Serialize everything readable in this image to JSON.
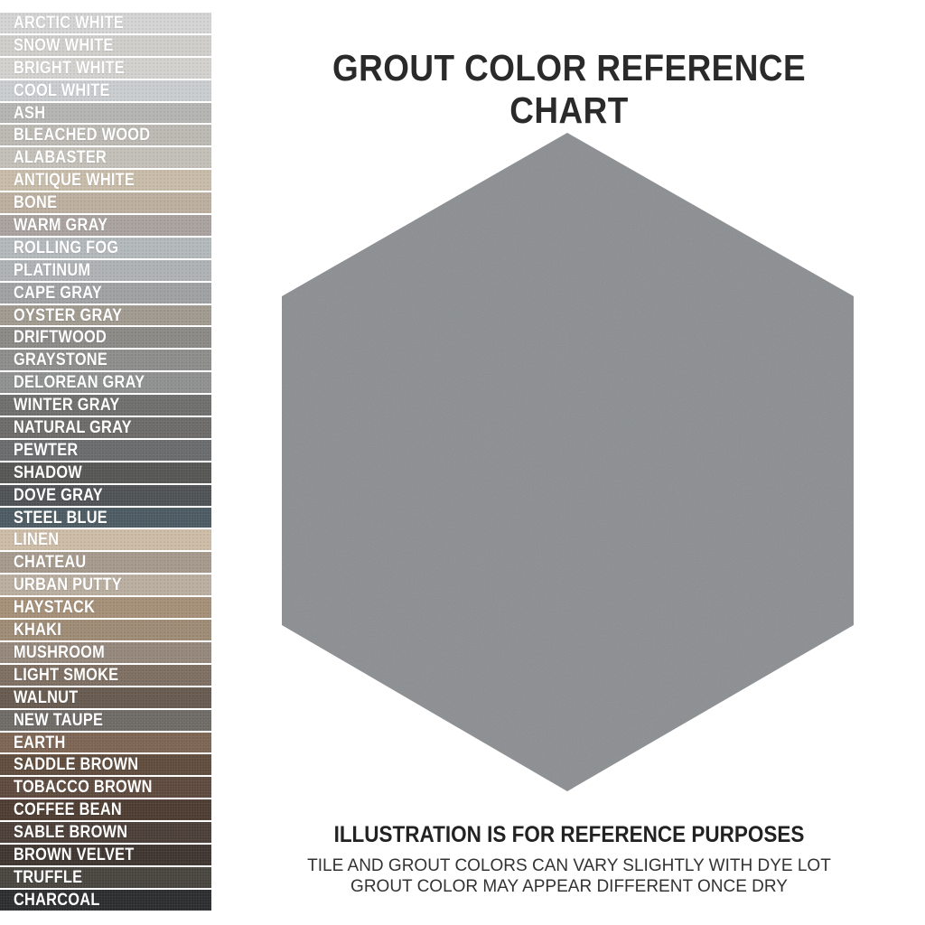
{
  "title": "GROUT COLOR REFERENCE CHART",
  "notes": {
    "headline": "ILLUSTRATION IS FOR REFERENCE PURPOSES",
    "line1": "TILE AND GROUT COLORS CAN VARY SLIGHTLY WITH DYE LOT",
    "line2": "GROUT COLOR MAY APPEAR DIFFERENT ONCE DRY"
  },
  "tile_color": "#8a8d90",
  "swatches": [
    {
      "label": "ARCTIC WHITE",
      "color": "#d4d4d4"
    },
    {
      "label": "SNOW WHITE",
      "color": "#cfcecb"
    },
    {
      "label": "BRIGHT WHITE",
      "color": "#d2d1ce"
    },
    {
      "label": "COOL WHITE",
      "color": "#c9cdd0"
    },
    {
      "label": "ASH",
      "color": "#b4b4b3"
    },
    {
      "label": "BLEACHED WOOD",
      "color": "#bcb9b3"
    },
    {
      "label": "ALABASTER",
      "color": "#c3c0b8"
    },
    {
      "label": "ANTIQUE WHITE",
      "color": "#c8bca9"
    },
    {
      "label": "BONE",
      "color": "#bcaf9f"
    },
    {
      "label": "WARM GRAY",
      "color": "#a9a29e"
    },
    {
      "label": "ROLLING FOG",
      "color": "#b3b9bb"
    },
    {
      "label": "PLATINUM",
      "color": "#aeb2b4"
    },
    {
      "label": "CAPE GRAY",
      "color": "#9fa1a2"
    },
    {
      "label": "OYSTER GRAY",
      "color": "#a09a8f"
    },
    {
      "label": "DRIFTWOOD",
      "color": "#8b8986"
    },
    {
      "label": "GRAYSTONE",
      "color": "#8d8d8c"
    },
    {
      "label": "DELOREAN GRAY",
      "color": "#8f9090"
    },
    {
      "label": "WINTER GRAY",
      "color": "#6f6f6e"
    },
    {
      "label": "NATURAL GRAY",
      "color": "#6c6b69"
    },
    {
      "label": "PEWTER",
      "color": "#6a6b6c"
    },
    {
      "label": "SHADOW",
      "color": "#565654"
    },
    {
      "label": "DOVE GRAY",
      "color": "#4f5255"
    },
    {
      "label": "STEEL BLUE",
      "color": "#4c5b63"
    },
    {
      "label": "LINEN",
      "color": "#cdbca6"
    },
    {
      "label": "CHATEAU",
      "color": "#a5998b"
    },
    {
      "label": "URBAN PUTTY",
      "color": "#b9ae9f"
    },
    {
      "label": "HAYSTACK",
      "color": "#a58f77"
    },
    {
      "label": "KHAKI",
      "color": "#9e8b75"
    },
    {
      "label": "MUSHROOM",
      "color": "#95877b"
    },
    {
      "label": "LIGHT SMOKE",
      "color": "#7e6f62"
    },
    {
      "label": "WALNUT",
      "color": "#675a4f"
    },
    {
      "label": "NEW TAUPE",
      "color": "#6f6a66"
    },
    {
      "label": "EARTH",
      "color": "#7d6554"
    },
    {
      "label": "SADDLE BROWN",
      "color": "#5f4c3d"
    },
    {
      "label": "TOBACCO BROWN",
      "color": "#5e4a3e"
    },
    {
      "label": "COFFEE BEAN",
      "color": "#4d3c31"
    },
    {
      "label": "SABLE BROWN",
      "color": "#4b3e38"
    },
    {
      "label": "BROWN VELVET",
      "color": "#3f3530"
    },
    {
      "label": "TRUFFLE",
      "color": "#48453f"
    },
    {
      "label": "CHARCOAL",
      "color": "#2c2d2f"
    }
  ]
}
